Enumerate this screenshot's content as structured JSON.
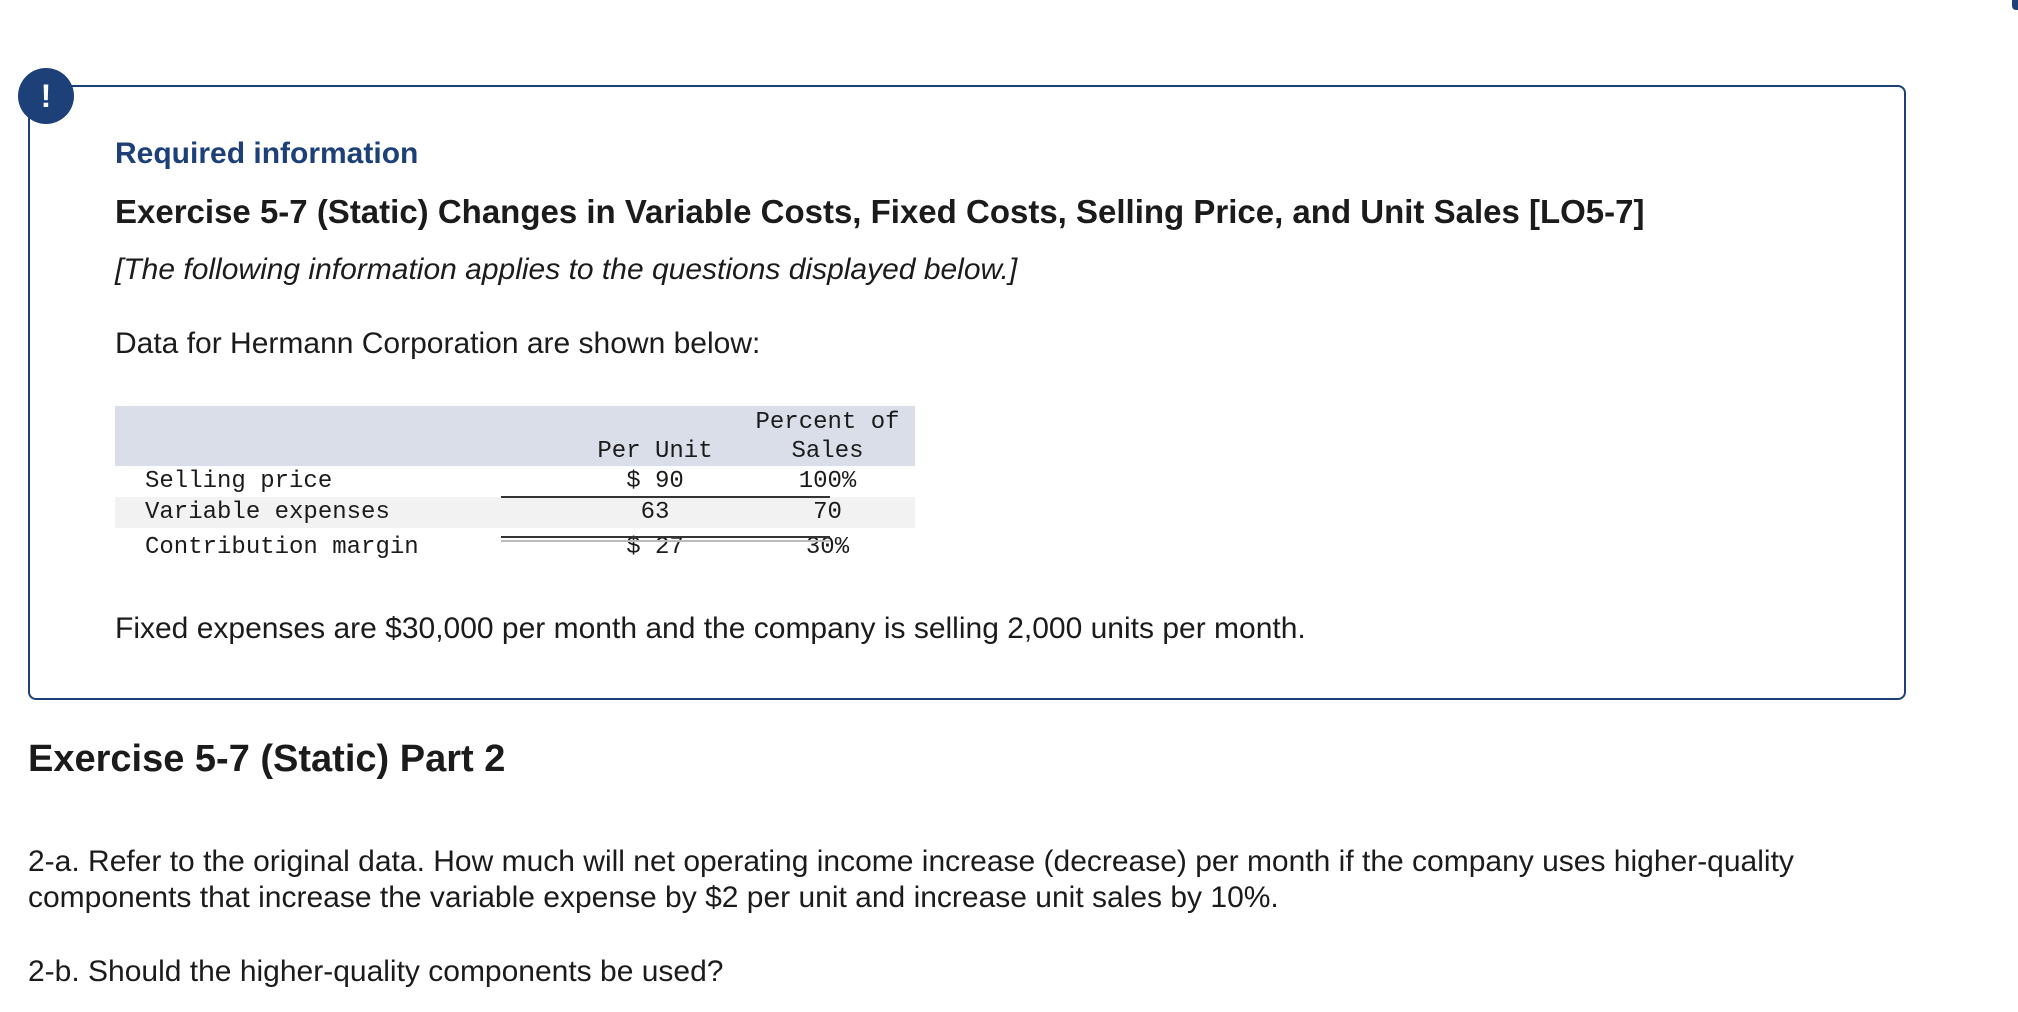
{
  "alert": {
    "symbol": "!"
  },
  "info_box": {
    "required_title": "Required information",
    "exercise_title": "Exercise 5-7 (Static) Changes in Variable Costs, Fixed Costs, Selling Price, and Unit Sales [LO5-7]",
    "applies_note": "[The following information applies to the questions displayed below.]",
    "data_intro": "Data for Hermann Corporation are shown below:",
    "table": {
      "header_per_unit": "Per Unit",
      "header_percent_line1": "Percent of",
      "header_percent_line2": "Sales",
      "rows": [
        {
          "label": "Selling price",
          "per_unit": "$ 90",
          "percent": "100%"
        },
        {
          "label": "Variable expenses",
          "per_unit": "63",
          "percent": "70"
        },
        {
          "label": "Contribution margin",
          "per_unit": "$ 27",
          "percent": "30%"
        }
      ]
    },
    "fixed_note": "Fixed expenses are $30,000 per month and the company is selling 2,000 units per month."
  },
  "part": {
    "title": "Exercise 5-7 (Static) Part 2",
    "question_2a": "2-a. Refer to the original data. How much will net operating income increase (decrease) per month if the company uses higher-quality components that increase the variable expense by $2 per unit and increase unit sales by 10%.",
    "question_2b": "2-b. Should the higher-quality components be used?"
  },
  "colors": {
    "accent": "#1d4078",
    "table_header_bg": "#d9dee8",
    "row_shade": "#f2f2f2",
    "text": "#1b1b1b"
  }
}
